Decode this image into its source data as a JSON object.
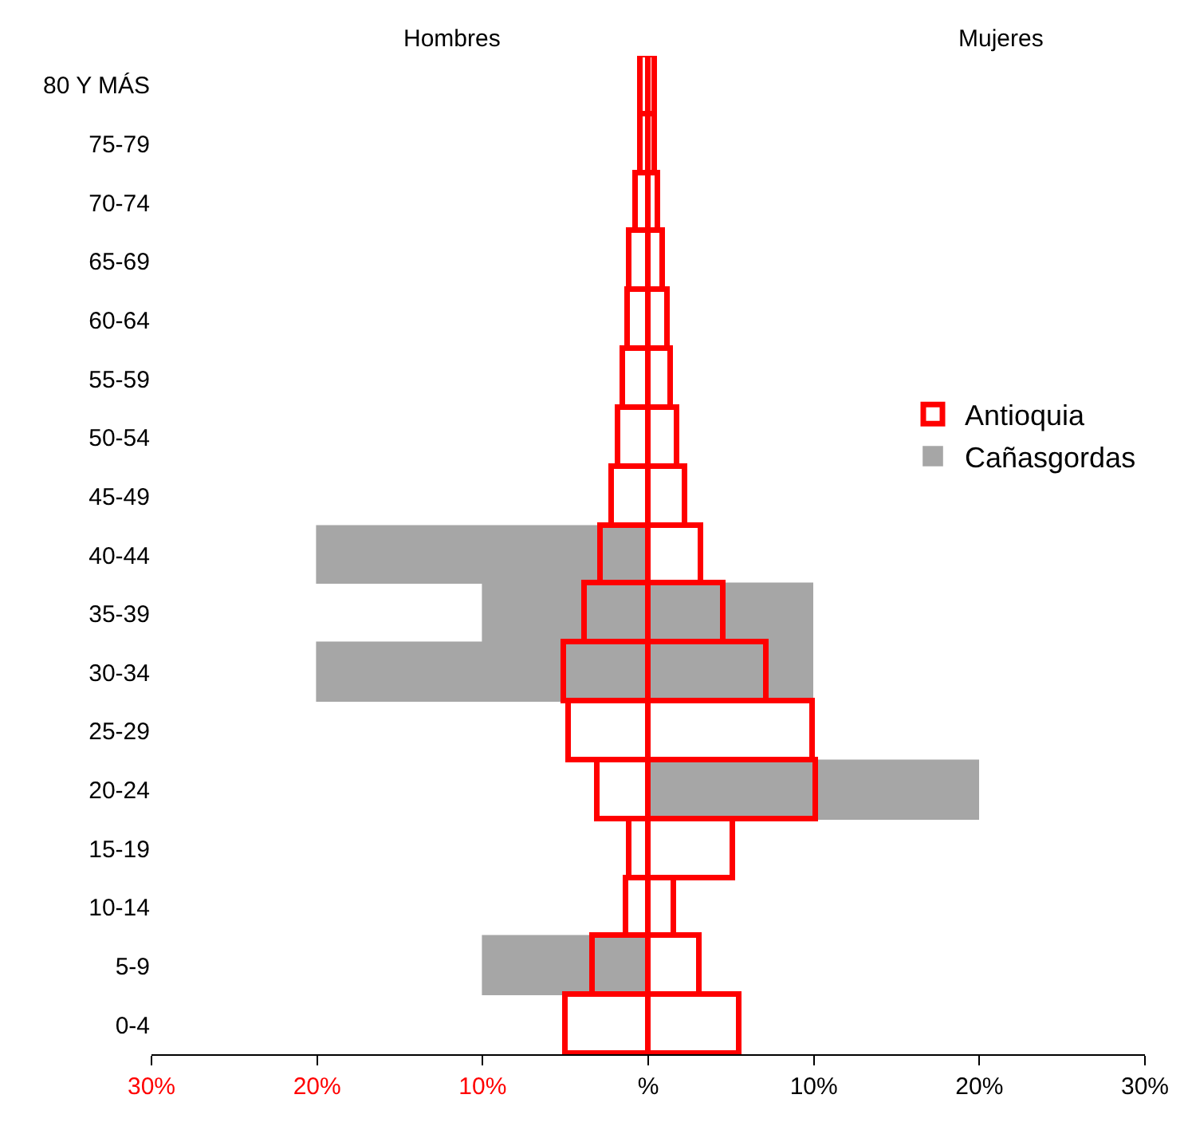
{
  "chart_data": {
    "type": "bar",
    "orientation": "horizontal",
    "categories": [
      "80 Y MÁS",
      "75-79",
      "70-74",
      "65-69",
      "60-64",
      "55-59",
      "50-54",
      "45-49",
      "40-44",
      "35-39",
      "30-34",
      "25-29",
      "20-24",
      "15-19",
      "10-14",
      "5-9",
      "0-4"
    ],
    "series": [
      {
        "name": "Cañasgordas",
        "color": "#a6a6a6",
        "values": [
          0,
          0,
          0,
          0,
          0,
          0,
          0,
          0,
          -20,
          -10,
          -20,
          0,
          0,
          0,
          0,
          -10,
          0
        ]
      },
      {
        "color": "#a6a6a6",
        "values": [
          0,
          0,
          0,
          0,
          0,
          0,
          0,
          0,
          0,
          10,
          10,
          0,
          20,
          0,
          0,
          0,
          0
        ]
      },
      {
        "name": "Antioquia",
        "color": "#ff0000",
        "values": [
          -0.4,
          -0.4,
          -0.7,
          -1.1,
          -1.2,
          -1.5,
          -1.8,
          -2.2,
          -2.8,
          -3.8,
          -5.1,
          -4.8,
          -3.0,
          -1.1,
          -1.3,
          -3.3,
          -5.0
        ]
      },
      {
        "color": "#ff0000",
        "values": [
          0.4,
          0.4,
          0.6,
          0.9,
          1.2,
          1.4,
          1.8,
          2.3,
          3.2,
          4.6,
          7.2,
          10.0,
          10.2,
          5.2,
          1.6,
          3.1,
          5.5
        ]
      }
    ],
    "xlim": [
      -30,
      30
    ],
    "xticks": [
      {
        "value": -30,
        "label": "30%"
      },
      {
        "value": -20,
        "label": "20%"
      },
      {
        "value": -10,
        "label": "10%"
      },
      {
        "value": 0,
        "label": "%"
      },
      {
        "value": 10,
        "label": "10%"
      },
      {
        "value": 20,
        "label": "20%"
      },
      {
        "value": 30,
        "label": "30%"
      }
    ],
    "annotations": [
      "Hombres",
      "Mujeres"
    ],
    "legend": "right"
  }
}
